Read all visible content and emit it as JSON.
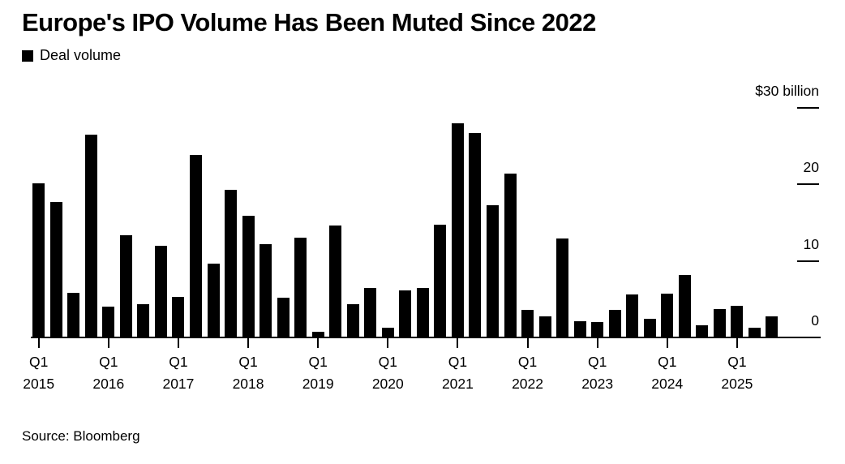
{
  "title": "Europe's IPO Volume Has Been Muted Since 2022",
  "legend": {
    "label": "Deal volume",
    "swatch_color": "#000000"
  },
  "source": "Source: Bloomberg",
  "colors": {
    "bar": "#000000",
    "text": "#000000",
    "axis": "#000000",
    "background": "#ffffff"
  },
  "chart_data": {
    "type": "bar",
    "title": "Europe's IPO Volume Has Been Muted Since 2022",
    "series_name": "Deal volume",
    "x": [
      "Q1 2015",
      "Q2 2015",
      "Q3 2015",
      "Q4 2015",
      "Q1 2016",
      "Q2 2016",
      "Q3 2016",
      "Q4 2016",
      "Q1 2017",
      "Q2 2017",
      "Q3 2017",
      "Q4 2017",
      "Q1 2018",
      "Q2 2018",
      "Q3 2018",
      "Q4 2018",
      "Q1 2019",
      "Q2 2019",
      "Q3 2019",
      "Q4 2019",
      "Q1 2020",
      "Q2 2020",
      "Q3 2020",
      "Q4 2020",
      "Q1 2021",
      "Q2 2021",
      "Q3 2021",
      "Q4 2021",
      "Q1 2022",
      "Q2 2022",
      "Q3 2022",
      "Q4 2022",
      "Q1 2023",
      "Q2 2023",
      "Q3 2023",
      "Q4 2023",
      "Q1 2024",
      "Q2 2024",
      "Q3 2024",
      "Q4 2024",
      "Q1 2025",
      "Q2 2025",
      "Q3 2025"
    ],
    "values": [
      20.1,
      17.7,
      5.8,
      26.5,
      4.0,
      13.3,
      4.3,
      12.0,
      5.3,
      23.8,
      9.6,
      19.3,
      15.9,
      12.2,
      5.2,
      13.0,
      0.7,
      14.6,
      4.3,
      6.5,
      1.3,
      6.1,
      6.5,
      14.7,
      27.9,
      26.7,
      17.3,
      21.4,
      3.6,
      2.8,
      12.9,
      2.1,
      2.0,
      3.6,
      5.6,
      2.4,
      5.7,
      8.1,
      1.6,
      3.7,
      4.1,
      1.3,
      2.8
    ],
    "ylim": [
      0,
      30
    ],
    "y_ticks": [
      {
        "value": 0,
        "label": "0"
      },
      {
        "value": 10,
        "label": "10"
      },
      {
        "value": 20,
        "label": "20"
      },
      {
        "value": 30,
        "label": "$30 billion"
      }
    ],
    "x_ticks": [
      {
        "quarter": "Q1",
        "year": "2015"
      },
      {
        "quarter": "Q1",
        "year": "2016"
      },
      {
        "quarter": "Q1",
        "year": "2017"
      },
      {
        "quarter": "Q1",
        "year": "2018"
      },
      {
        "quarter": "Q1",
        "year": "2019"
      },
      {
        "quarter": "Q1",
        "year": "2020"
      },
      {
        "quarter": "Q1",
        "year": "2021"
      },
      {
        "quarter": "Q1",
        "year": "2022"
      },
      {
        "quarter": "Q1",
        "year": "2023"
      },
      {
        "quarter": "Q1",
        "year": "2024"
      },
      {
        "quarter": "Q1",
        "year": "2025"
      }
    ],
    "legend_position": "top-left",
    "grid": false
  }
}
